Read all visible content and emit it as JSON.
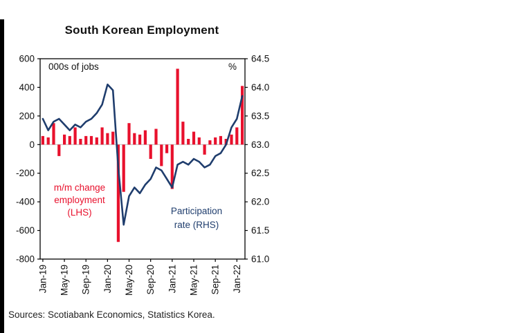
{
  "title": "South Korean Employment",
  "sources": "Sources: Scotiabank Economics, Statistics Korea.",
  "colors": {
    "bar_red": "#e8112d",
    "line_navy": "#1f3d6d",
    "axis_black": "#000000",
    "zero_line": "#bbbbbb"
  },
  "chart_data": {
    "type": "bar",
    "subtype": "bar+line dual-axis",
    "categories": [
      "Jan-19",
      "Feb-19",
      "Mar-19",
      "Apr-19",
      "May-19",
      "Jun-19",
      "Jul-19",
      "Aug-19",
      "Sep-19",
      "Oct-19",
      "Nov-19",
      "Dec-19",
      "Jan-20",
      "Feb-20",
      "Mar-20",
      "Apr-20",
      "May-20",
      "Jun-20",
      "Jul-20",
      "Aug-20",
      "Sep-20",
      "Oct-20",
      "Nov-20",
      "Dec-20",
      "Jan-21",
      "Feb-21",
      "Mar-21",
      "Apr-21",
      "May-21",
      "Jun-21",
      "Jul-21",
      "Aug-21",
      "Sep-21",
      "Oct-21",
      "Nov-21",
      "Dec-21",
      "Jan-22",
      "Feb-22"
    ],
    "x_tick_labels": [
      "Jan-19",
      "May-19",
      "Sep-19",
      "Jan-20",
      "May-20",
      "Sep-20",
      "Jan-21",
      "May-21",
      "Sep-21",
      "Jan-22"
    ],
    "x_tick_every": 4,
    "series": [
      {
        "name": "m/m change employment (LHS)",
        "type": "bar",
        "axis": "left",
        "color": "#e8112d",
        "values": [
          60,
          50,
          150,
          -80,
          70,
          60,
          120,
          40,
          60,
          60,
          50,
          120,
          80,
          90,
          -680,
          -330,
          150,
          80,
          70,
          100,
          -100,
          110,
          -150,
          -60,
          -310,
          530,
          160,
          40,
          90,
          50,
          -70,
          30,
          50,
          60,
          40,
          70,
          120,
          410
        ]
      },
      {
        "name": "Participation rate (RHS)",
        "type": "line",
        "axis": "right",
        "color": "#1f3d6d",
        "values": [
          63.45,
          63.25,
          63.4,
          63.45,
          63.35,
          63.25,
          63.35,
          63.3,
          63.4,
          63.45,
          63.55,
          63.7,
          64.05,
          63.95,
          62.6,
          61.6,
          62.1,
          62.25,
          62.15,
          62.3,
          62.4,
          62.6,
          62.55,
          62.4,
          62.25,
          62.65,
          62.7,
          62.65,
          62.75,
          62.7,
          62.6,
          62.65,
          62.8,
          62.85,
          63.0,
          63.3,
          63.45,
          63.85
        ]
      }
    ],
    "left_axis": {
      "label": "000s of jobs",
      "min": -800,
      "max": 600,
      "step": 200
    },
    "right_axis": {
      "label": "%",
      "min": 61.0,
      "max": 64.5,
      "step": 0.5
    },
    "grid": "off",
    "legend_position": "in-plot annotations",
    "annotations": [
      {
        "text_lines": [
          "m/m change",
          "employment",
          "(LHS)"
        ],
        "color": "#e8112d",
        "series": "bar"
      },
      {
        "text_lines": [
          "Participation",
          "rate (RHS)"
        ],
        "color": "#1f3d6d",
        "series": "line"
      }
    ]
  }
}
